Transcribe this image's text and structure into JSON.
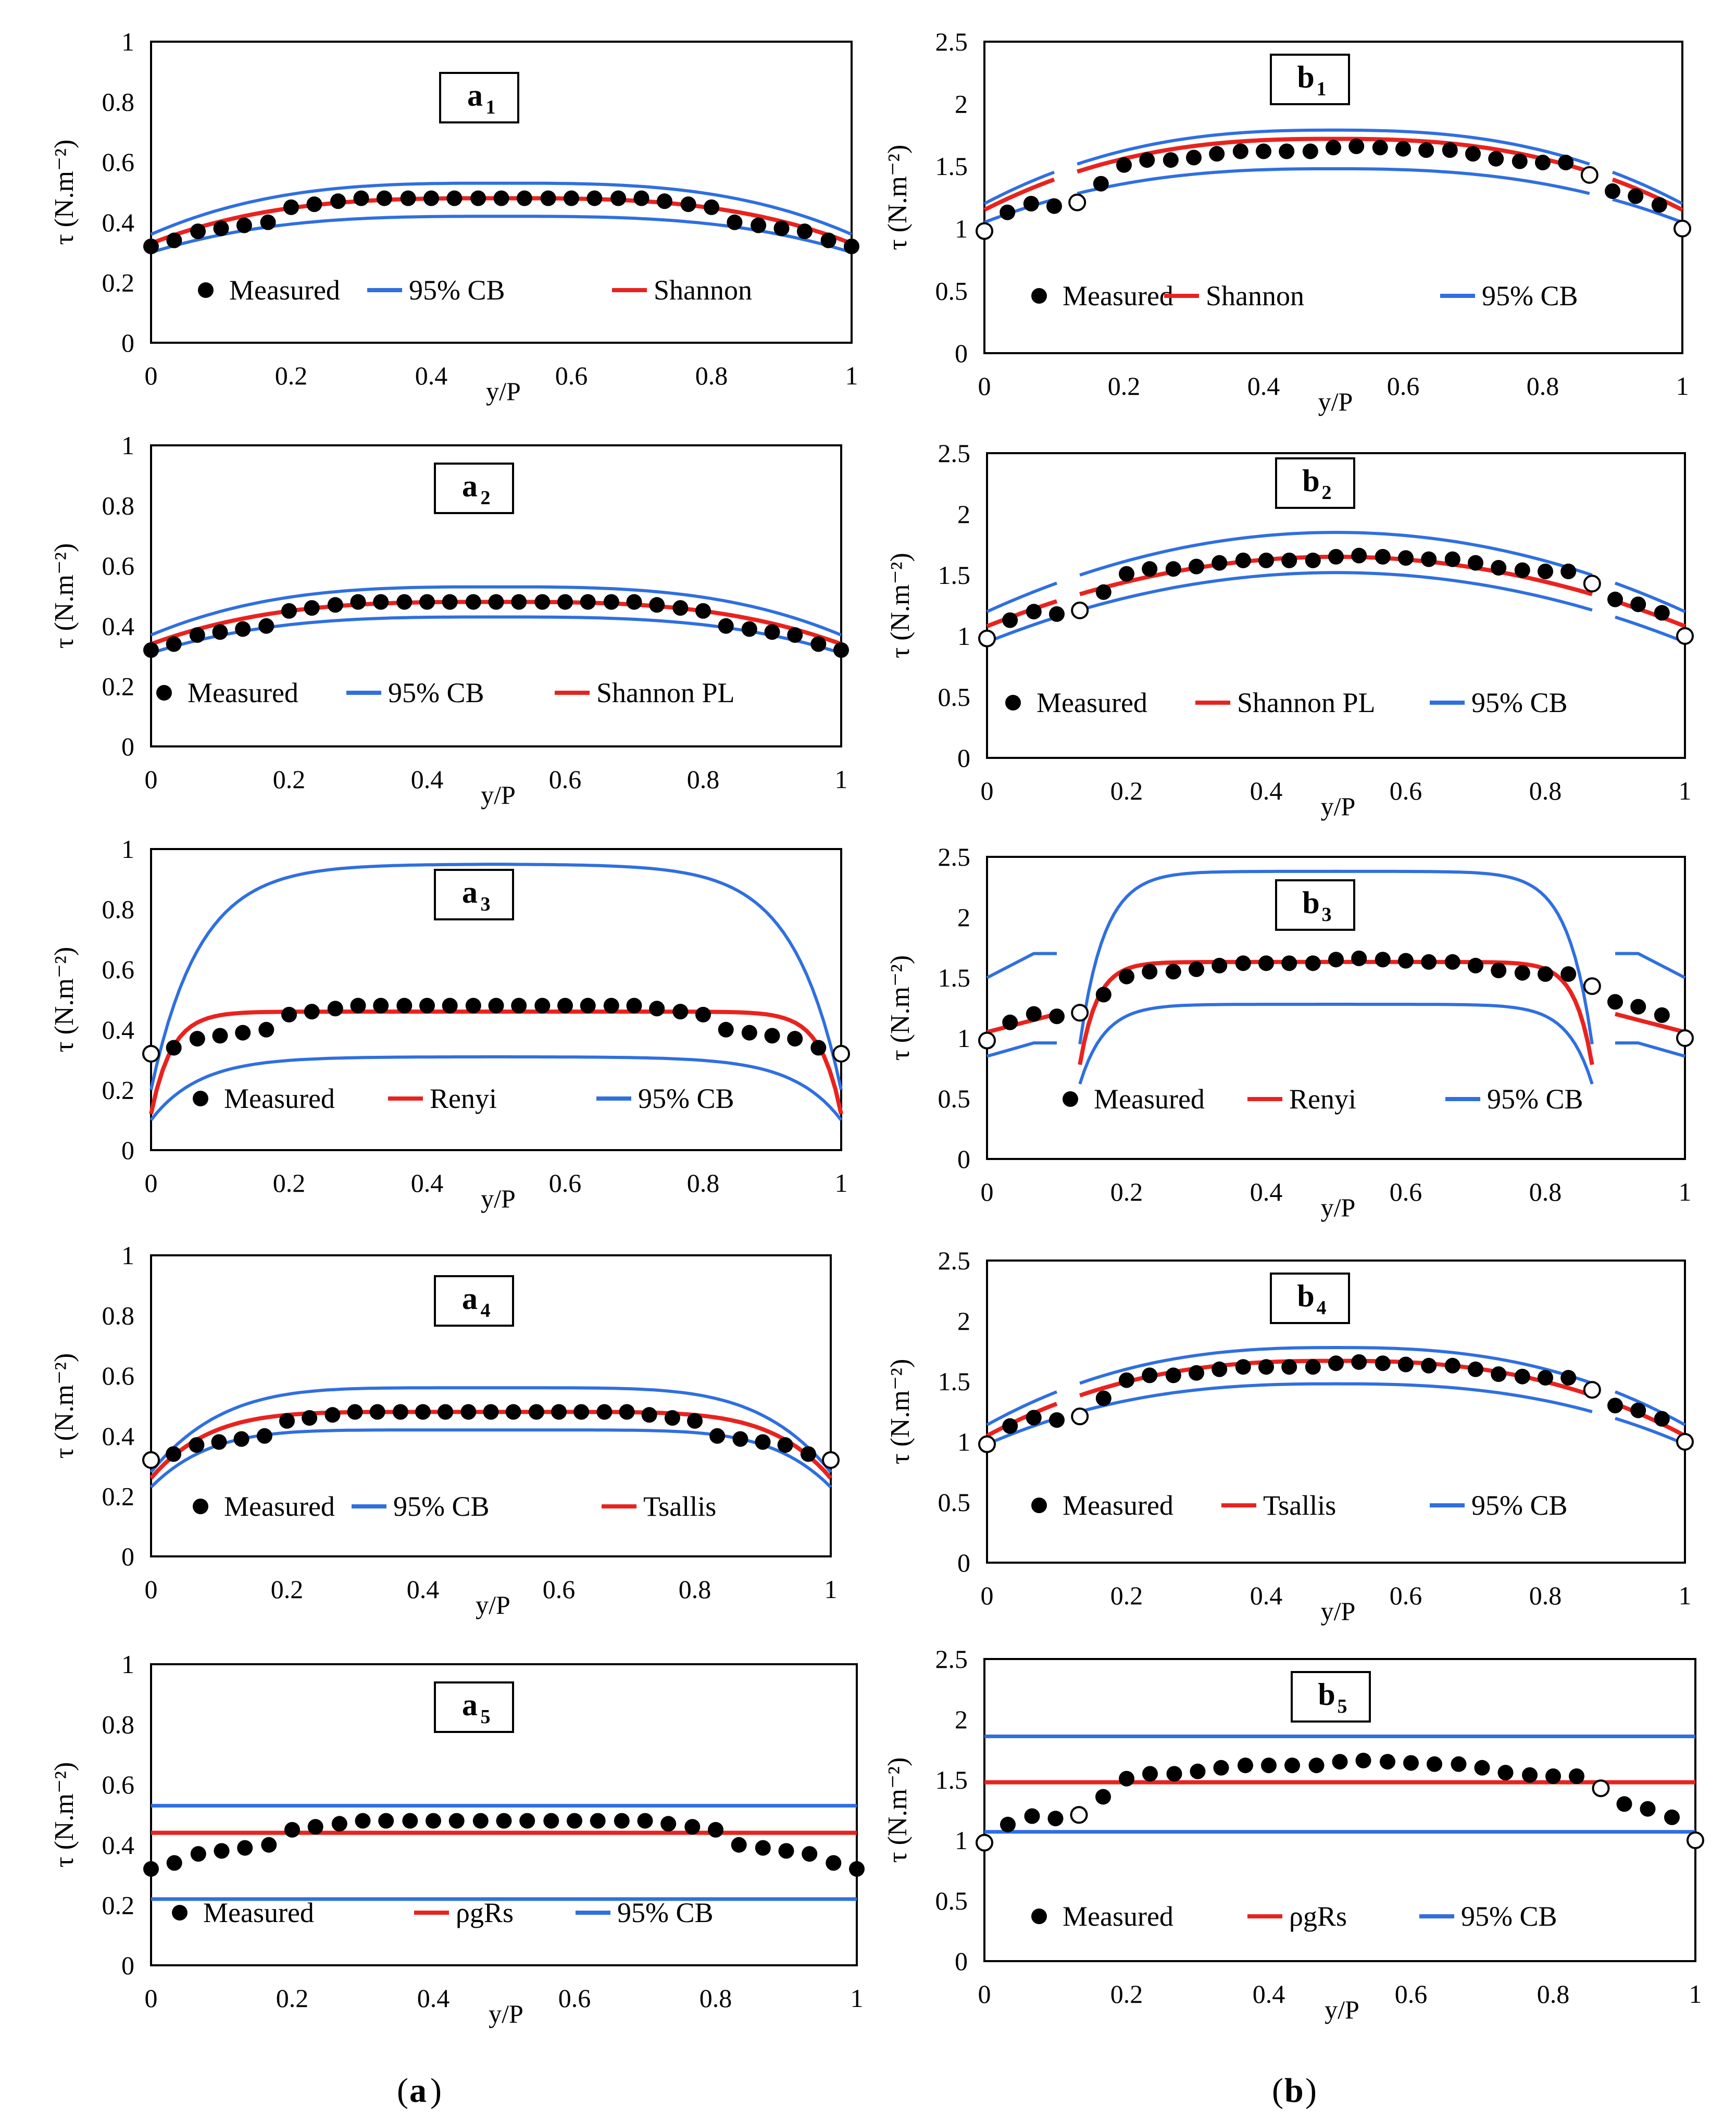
{
  "colors": {
    "measured": "#000000",
    "model": "#e8231f",
    "cb": "#2f6fe0"
  },
  "axes": {
    "xlabel": "y/P",
    "ylabel": "τ (N.m⁻²)",
    "left_y_ticks": [
      "0",
      "0.2",
      "0.4",
      "0.6",
      "0.8",
      "1"
    ],
    "right_y_ticks": [
      "0",
      "0.5",
      "1",
      "1.5",
      "2",
      "2.5"
    ],
    "x_ticks": [
      "0",
      "0.2",
      "0.4",
      "0.6",
      "0.8",
      "1"
    ]
  },
  "captions": {
    "a": "a",
    "b": "b"
  },
  "chart_data": [
    {
      "id": "a1",
      "type": "line",
      "tag": "a",
      "tag_sub": "1",
      "ylim": [
        0,
        1
      ],
      "xlim": [
        0,
        1
      ],
      "legend": [
        "Measured",
        "95% CB",
        "Shannon"
      ],
      "model_name": "Shannon",
      "model_kind": "profile",
      "hollow_ends": false,
      "series": [
        {
          "name": "Measured"
        },
        {
          "name": "95% CB"
        },
        {
          "name": "Shannon"
        }
      ]
    },
    {
      "id": "a2",
      "type": "line",
      "tag": "a",
      "tag_sub": "2",
      "ylim": [
        0,
        1
      ],
      "xlim": [
        0,
        1
      ],
      "legend": [
        "Measured",
        "95% CB",
        "Shannon PL"
      ],
      "model_name": "Shannon PL",
      "model_kind": "profile",
      "hollow_ends": false,
      "series": [
        {
          "name": "Measured"
        },
        {
          "name": "95% CB"
        },
        {
          "name": "Shannon PL"
        }
      ]
    },
    {
      "id": "a3",
      "type": "line",
      "tag": "a",
      "tag_sub": "3",
      "ylim": [
        0,
        1
      ],
      "xlim": [
        0,
        1
      ],
      "legend": [
        "Measured",
        "Renyi",
        "95% CB"
      ],
      "model_name": "Renyi",
      "model_kind": "renyi",
      "hollow_ends": true,
      "series": [
        {
          "name": "Measured"
        },
        {
          "name": "Renyi"
        },
        {
          "name": "95% CB"
        }
      ]
    },
    {
      "id": "a4",
      "type": "line",
      "tag": "a",
      "tag_sub": "4",
      "ylim": [
        0,
        1
      ],
      "xlim": [
        0,
        1
      ],
      "legend": [
        "Measured",
        "95% CB",
        "Tsallis"
      ],
      "model_name": "Tsallis",
      "model_kind": "profile",
      "hollow_ends": true,
      "series": [
        {
          "name": "Measured"
        },
        {
          "name": "95% CB"
        },
        {
          "name": "Tsallis"
        }
      ]
    },
    {
      "id": "a5",
      "type": "line",
      "tag": "a",
      "tag_sub": "5",
      "ylim": [
        0,
        1
      ],
      "xlim": [
        0,
        1
      ],
      "legend": [
        "Measured",
        "ρgRs",
        "95% CB"
      ],
      "model_name": "ρgRs",
      "model_kind": "flat",
      "hollow_ends": false,
      "flat": {
        "model": 0.44,
        "upper": 0.53,
        "lower": 0.22
      },
      "series": [
        {
          "name": "Measured"
        },
        {
          "name": "ρgRs"
        },
        {
          "name": "95% CB"
        }
      ]
    },
    {
      "id": "b1",
      "type": "line",
      "tag": "b",
      "tag_sub": "1",
      "ylim": [
        0,
        2.5
      ],
      "xlim": [
        0,
        1
      ],
      "legend": [
        "Measured",
        "Shannon",
        "95% CB"
      ],
      "model_name": "Shannon",
      "model_kind": "profile",
      "hollow_ends": true,
      "series": [
        {
          "name": "Measured"
        },
        {
          "name": "Shannon"
        },
        {
          "name": "95% CB"
        }
      ]
    },
    {
      "id": "b2",
      "type": "line",
      "tag": "b",
      "tag_sub": "2",
      "ylim": [
        0,
        2.5
      ],
      "xlim": [
        0,
        1
      ],
      "legend": [
        "Measured",
        "Shannon PL",
        "95% CB"
      ],
      "model_name": "Shannon PL",
      "model_kind": "profile",
      "hollow_ends": true,
      "series": [
        {
          "name": "Measured"
        },
        {
          "name": "Shannon PL"
        },
        {
          "name": "95% CB"
        }
      ]
    },
    {
      "id": "b3",
      "type": "line",
      "tag": "b",
      "tag_sub": "3",
      "ylim": [
        0,
        2.5
      ],
      "xlim": [
        0,
        1
      ],
      "legend": [
        "Measured",
        "Renyi",
        "95% CB"
      ],
      "model_name": "Renyi",
      "model_kind": "renyi",
      "hollow_ends": true,
      "series": [
        {
          "name": "Measured"
        },
        {
          "name": "Renyi"
        },
        {
          "name": "95% CB"
        }
      ]
    },
    {
      "id": "b4",
      "type": "line",
      "tag": "b",
      "tag_sub": "4",
      "ylim": [
        0,
        2.5
      ],
      "xlim": [
        0,
        1
      ],
      "legend": [
        "Measured",
        "Tsallis",
        "95% CB"
      ],
      "model_name": "Tsallis",
      "model_kind": "profile",
      "hollow_ends": true,
      "series": [
        {
          "name": "Measured"
        },
        {
          "name": "Tsallis"
        },
        {
          "name": "95% CB"
        }
      ]
    },
    {
      "id": "b5",
      "type": "line",
      "tag": "b",
      "tag_sub": "5",
      "ylim": [
        0,
        2.5
      ],
      "xlim": [
        0,
        1
      ],
      "legend": [
        "Measured",
        "ρgRs",
        "95% CB"
      ],
      "model_name": "ρgRs",
      "model_kind": "flat",
      "hollow_ends": true,
      "flat": {
        "model": 1.48,
        "upper": 1.86,
        "lower": 1.07
      },
      "series": [
        {
          "name": "Measured"
        },
        {
          "name": "ρgRs"
        },
        {
          "name": "95% CB"
        }
      ]
    }
  ],
  "measured": {
    "a": {
      "x": [
        0,
        0.033,
        0.067,
        0.1,
        0.133,
        0.167,
        0.2,
        0.233,
        0.267,
        0.3,
        0.333,
        0.367,
        0.4,
        0.433,
        0.467,
        0.5,
        0.533,
        0.567,
        0.6,
        0.633,
        0.667,
        0.7,
        0.733,
        0.767,
        0.8,
        0.833,
        0.867,
        0.9,
        0.933,
        0.967,
        1
      ],
      "y": [
        0.32,
        0.34,
        0.37,
        0.38,
        0.39,
        0.4,
        0.45,
        0.46,
        0.47,
        0.48,
        0.48,
        0.48,
        0.48,
        0.48,
        0.48,
        0.48,
        0.48,
        0.48,
        0.48,
        0.48,
        0.48,
        0.48,
        0.47,
        0.46,
        0.45,
        0.4,
        0.39,
        0.38,
        0.37,
        0.34,
        0.32
      ]
    },
    "b": {
      "x": [
        0,
        0.033,
        0.067,
        0.1,
        0.133,
        0.167,
        0.2,
        0.233,
        0.267,
        0.3,
        0.333,
        0.367,
        0.4,
        0.433,
        0.467,
        0.5,
        0.533,
        0.567,
        0.6,
        0.633,
        0.667,
        0.7,
        0.733,
        0.767,
        0.8,
        0.833,
        0.867,
        0.9,
        0.933,
        0.967,
        1
      ],
      "y": [
        0.98,
        1.13,
        1.2,
        1.18,
        1.21,
        1.36,
        1.51,
        1.55,
        1.55,
        1.57,
        1.6,
        1.62,
        1.62,
        1.62,
        1.62,
        1.65,
        1.66,
        1.65,
        1.64,
        1.63,
        1.63,
        1.6,
        1.56,
        1.54,
        1.53,
        1.53,
        1.43,
        1.3,
        1.26,
        1.19,
        1.0
      ]
    }
  }
}
